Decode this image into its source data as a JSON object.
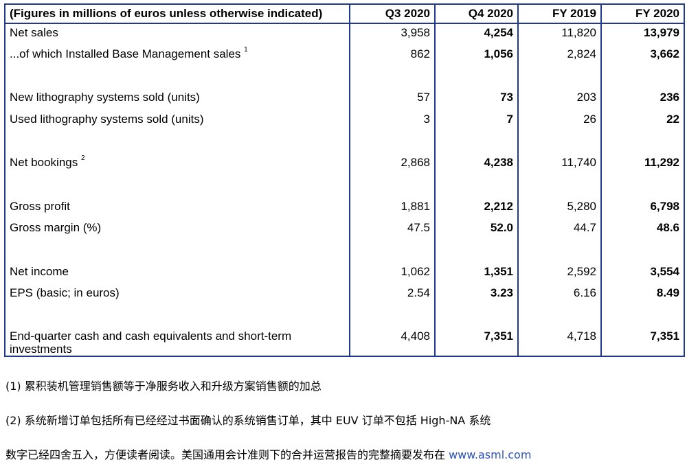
{
  "table": {
    "headers": [
      "(Figures in millions of euros unless otherwise indicated)",
      "Q3 2020",
      "Q4 2020",
      "FY 2019",
      "FY 2020"
    ],
    "rows": [
      {
        "label": "Net sales",
        "sup": "",
        "values": [
          "3,958",
          "4,254",
          "11,820",
          "13,979"
        ]
      },
      {
        "label": "...of which Installed Base Management sales",
        "sup": "1",
        "values": [
          "862",
          "1,056",
          "2,824",
          "3,662"
        ]
      },
      {
        "label": "New lithography systems sold (units)",
        "sup": "",
        "values": [
          "57",
          "73",
          "203",
          "236"
        ]
      },
      {
        "label": "Used lithography systems sold (units)",
        "sup": "",
        "values": [
          "3",
          "7",
          "26",
          "22"
        ]
      },
      {
        "label": "Net bookings",
        "sup": "2",
        "values": [
          "2,868",
          "4,238",
          "11,740",
          "11,292"
        ]
      },
      {
        "label": "Gross profit",
        "sup": "",
        "values": [
          "1,881",
          "2,212",
          "5,280",
          "6,798"
        ]
      },
      {
        "label": "Gross margin (%)",
        "sup": "",
        "values": [
          "47.5",
          "52.0",
          "44.7",
          "48.6"
        ]
      },
      {
        "label": "Net income",
        "sup": "",
        "values": [
          "1,062",
          "1,351",
          "2,592",
          "3,554"
        ]
      },
      {
        "label": "EPS (basic; in euros)",
        "sup": "",
        "values": [
          "2.54",
          "3.23",
          "6.16",
          "8.49"
        ]
      },
      {
        "label": "End-quarter cash and cash equivalents and short-term investments",
        "sup": "",
        "values": [
          "4,408",
          "7,351",
          "4,718",
          "7,351"
        ]
      }
    ]
  },
  "notes": {
    "note1_marker": "(1)",
    "note1_text": "累积装机管理销售额等于净服务收入和升级方案销售额的加总",
    "note2_marker": "(2)",
    "note2_text": "系统新增订单包括所有已经经过书面确认的系统销售订单，其中 EUV 订单不包括 High-NA 系统",
    "note3_text": "数字已经四舍五入，方便读者阅读。美国通用会计准则下的合并运营报告的完整摘要发布在 ",
    "note3_link": "www.asml.com"
  },
  "colors": {
    "border": "#1f3a8c",
    "link": "#2b52b8"
  }
}
